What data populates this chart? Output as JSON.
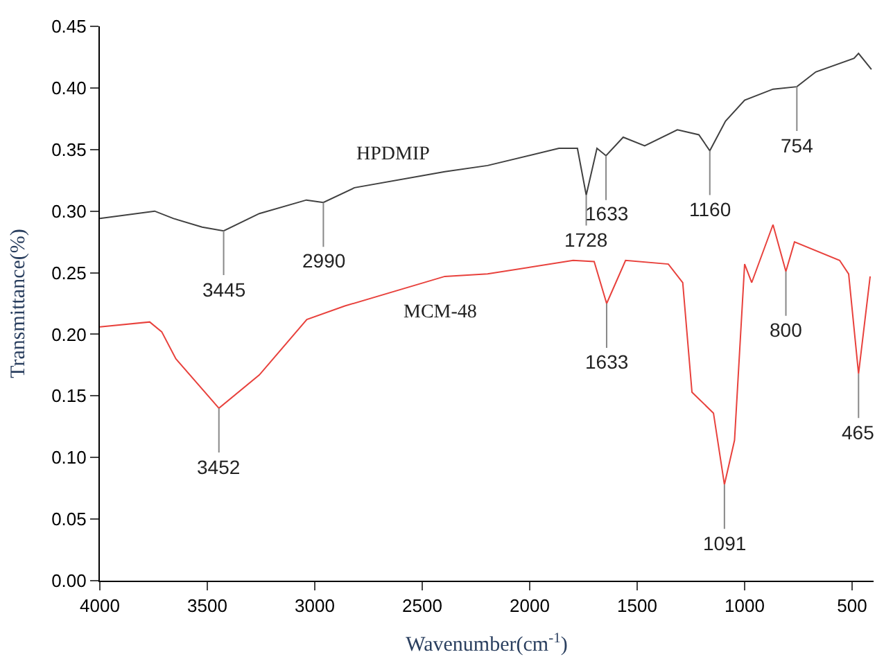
{
  "chart_data": {
    "type": "line",
    "xlabel": "Wavenumber(cm$^{-1}$)",
    "ylabel": "Transmittance(%)",
    "xlim": [
      4000,
      400
    ],
    "xticks": [
      4000,
      3500,
      3000,
      2500,
      2000,
      1500,
      1000,
      500
    ],
    "ylim": [
      0,
      0.45
    ],
    "yticks": [
      {
        "value": 0,
        "label": "0.00"
      },
      {
        "value": 0.05,
        "label": "0.05"
      },
      {
        "value": 0.1,
        "label": "0.10"
      },
      {
        "value": 0.15,
        "label": "0.15"
      },
      {
        "value": 0.2,
        "label": "0.20"
      },
      {
        "value": 0.25,
        "label": "0.25"
      },
      {
        "value": 0.3,
        "label": "0.30"
      },
      {
        "value": 0.35,
        "label": "0.35"
      },
      {
        "value": 0.4,
        "label": "0.40"
      },
      {
        "value": 0.45,
        "label": "0.45"
      }
    ],
    "legend": false,
    "marker": "none",
    "line_style": "solid",
    "series": [
      {
        "name": "HPDMIP",
        "color": "#404040",
        "x": [
          4000,
          3745,
          3657,
          3524,
          3424,
          3258,
          3039,
          2960,
          2815,
          2395,
          2196,
          1864,
          1778,
          1737,
          1687,
          1645,
          1565,
          1465,
          1313,
          1213,
          1162,
          1089,
          1000,
          868,
          757,
          669,
          491,
          470,
          410
        ],
        "values": [
          0.294,
          0.3,
          0.294,
          0.287,
          0.284,
          0.298,
          0.309,
          0.307,
          0.319,
          0.332,
          0.337,
          0.351,
          0.351,
          0.313,
          0.351,
          0.345,
          0.36,
          0.353,
          0.366,
          0.362,
          0.349,
          0.373,
          0.39,
          0.399,
          0.401,
          0.413,
          0.424,
          0.428,
          0.415
        ]
      },
      {
        "name": "MCM-48",
        "color": "#e8413c",
        "x": [
          4000,
          3768,
          3712,
          3646,
          3446,
          3258,
          3037,
          2860,
          2395,
          2196,
          1798,
          1700,
          1642,
          1554,
          1355,
          1288,
          1245,
          1145,
          1094,
          1047,
          1000,
          967,
          868,
          808,
          768,
          558,
          516,
          470,
          416
        ],
        "values": [
          0.206,
          0.21,
          0.202,
          0.18,
          0.14,
          0.167,
          0.212,
          0.223,
          0.247,
          0.249,
          0.26,
          0.259,
          0.225,
          0.26,
          0.257,
          0.242,
          0.153,
          0.136,
          0.078,
          0.114,
          0.257,
          0.242,
          0.289,
          0.251,
          0.275,
          0.26,
          0.249,
          0.168,
          0.247
        ]
      }
    ],
    "annotations": [
      {
        "text": "3445",
        "x": 3424,
        "y": 0.284
      },
      {
        "text": "2990",
        "x": 2960,
        "y": 0.307
      },
      {
        "text": "1728",
        "x": 1737,
        "y": 0.313
      },
      {
        "text": "1633",
        "x": 1645,
        "y": 0.345
      },
      {
        "text": "1160",
        "x": 1162,
        "y": 0.349
      },
      {
        "text": "754",
        "x": 757,
        "y": 0.401
      },
      {
        "text": "3452",
        "x": 3446,
        "y": 0.14
      },
      {
        "text": "1633",
        "x": 1642,
        "y": 0.225
      },
      {
        "text": "1091",
        "x": 1094,
        "y": 0.078
      },
      {
        "text": "800",
        "x": 808,
        "y": 0.251
      },
      {
        "text": "465",
        "x": 470,
        "y": 0.168
      }
    ]
  }
}
